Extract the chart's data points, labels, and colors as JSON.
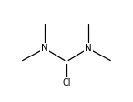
{
  "bg_color": "#ffffff",
  "line_color": "#000000",
  "text_color": "#000000",
  "font_size": 7.5,
  "lw": 0.9,
  "shorten_N": 0.025,
  "shorten_Cl": 0.015,
  "shorten_Me": 0.018,
  "C": [
    0.5,
    0.52
  ],
  "N1": [
    0.32,
    0.62
  ],
  "N2": [
    0.68,
    0.62
  ],
  "Cl": [
    0.5,
    0.37
  ],
  "Me1u": [
    0.32,
    0.82
  ],
  "Me1l": [
    0.12,
    0.52
  ],
  "Me2u": [
    0.68,
    0.82
  ],
  "Me2r": [
    0.88,
    0.52
  ],
  "xlim": [
    -0.05,
    1.05
  ],
  "ylim": [
    0.22,
    0.98
  ]
}
